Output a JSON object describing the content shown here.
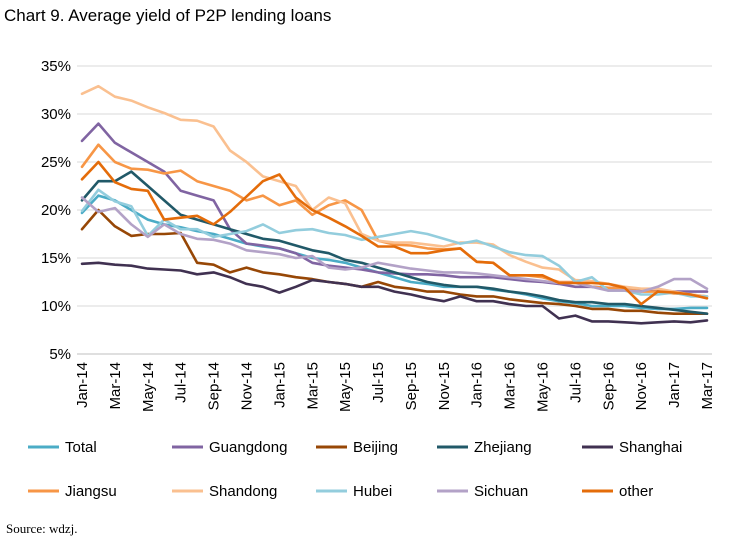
{
  "title": "Chart 9. Average yield of P2P lending loans",
  "source": "Source: wdzj.",
  "chart_data": {
    "type": "line",
    "x": [
      "Jan-14",
      "Feb-14",
      "Mar-14",
      "Apr-14",
      "May-14",
      "Jun-14",
      "Jul-14",
      "Aug-14",
      "Sep-14",
      "Oct-14",
      "Nov-14",
      "Dec-14",
      "Jan-15",
      "Feb-15",
      "Mar-15",
      "Apr-15",
      "May-15",
      "Jun-15",
      "Jul-15",
      "Aug-15",
      "Sep-15",
      "Oct-15",
      "Nov-15",
      "Dec-15",
      "Jan-16",
      "Feb-16",
      "Mar-16",
      "Apr-16",
      "May-16",
      "Jun-16",
      "Jul-16",
      "Aug-16",
      "Sep-16",
      "Oct-16",
      "Nov-16",
      "Dec-16",
      "Jan-17",
      "Feb-17",
      "Mar-17"
    ],
    "x_tick_labels": [
      "Jan-14",
      "Mar-14",
      "May-14",
      "Jul-14",
      "Sep-14",
      "Nov-14",
      "Jan-15",
      "Mar-15",
      "May-15",
      "Jul-15",
      "Sep-15",
      "Nov-15",
      "Jan-16",
      "Mar-16",
      "May-16",
      "Jul-16",
      "Sep-16",
      "Nov-16",
      "Jan-17",
      "Mar-17"
    ],
    "y_ticks": [
      "5%",
      "10%",
      "15%",
      "20%",
      "25%",
      "30%",
      "35%"
    ],
    "ylim": [
      5,
      35
    ],
    "grid": "horizontal",
    "legend_position": "bottom",
    "series": [
      {
        "name": "Total",
        "color": "#4bacc6",
        "values": [
          19.7,
          21.5,
          21.0,
          20.0,
          19.0,
          18.5,
          18.2,
          17.8,
          17.5,
          17.0,
          16.5,
          16.2,
          16.0,
          15.5,
          15.0,
          14.8,
          14.5,
          14.0,
          13.5,
          13.0,
          12.5,
          12.3,
          12.0,
          12.0,
          12.0,
          11.7,
          11.5,
          11.2,
          10.8,
          10.5,
          10.3,
          10.0,
          10.0,
          10.0,
          9.8,
          9.7,
          9.7,
          9.8,
          9.8
        ]
      },
      {
        "name": "Guangdong",
        "color": "#8064a2",
        "values": [
          27.2,
          29.0,
          27.0,
          26.0,
          25.0,
          24.0,
          22.0,
          21.5,
          21.0,
          18.0,
          16.5,
          16.3,
          16.0,
          15.5,
          14.5,
          14.2,
          14.0,
          13.8,
          13.5,
          13.4,
          13.3,
          13.3,
          13.2,
          13.0,
          13.0,
          13.0,
          12.8,
          12.6,
          12.5,
          12.3,
          12.0,
          12.0,
          11.9,
          11.8,
          11.7,
          11.6,
          11.5,
          11.5,
          11.5
        ]
      },
      {
        "name": "Beijing",
        "color": "#974706",
        "values": [
          18.0,
          20.0,
          18.3,
          17.3,
          17.5,
          17.5,
          17.6,
          14.5,
          14.3,
          13.5,
          14.0,
          13.5,
          13.3,
          13.0,
          12.8,
          12.5,
          12.3,
          12.0,
          12.5,
          12.0,
          11.8,
          11.5,
          11.5,
          11.2,
          11.0,
          11.0,
          10.7,
          10.5,
          10.3,
          10.2,
          10.0,
          9.7,
          9.7,
          9.5,
          9.5,
          9.3,
          9.2,
          9.2,
          9.2
        ]
      },
      {
        "name": "Zhejiang",
        "color": "#215968",
        "values": [
          21.0,
          23.0,
          23.0,
          24.0,
          22.5,
          21.0,
          19.5,
          19.0,
          18.5,
          18.0,
          17.5,
          17.0,
          16.8,
          16.3,
          15.8,
          15.5,
          14.8,
          14.5,
          14.0,
          13.5,
          13.0,
          12.5,
          12.2,
          12.0,
          12.0,
          11.8,
          11.5,
          11.3,
          11.0,
          10.6,
          10.4,
          10.4,
          10.2,
          10.2,
          10.0,
          9.8,
          9.6,
          9.4,
          9.2
        ]
      },
      {
        "name": "Shanghai",
        "color": "#403151",
        "values": [
          14.4,
          14.5,
          14.3,
          14.2,
          13.9,
          13.8,
          13.7,
          13.3,
          13.5,
          13.0,
          12.3,
          12.0,
          11.4,
          12.0,
          12.7,
          12.5,
          12.3,
          12.0,
          12.0,
          11.5,
          11.2,
          10.8,
          10.5,
          11.0,
          10.5,
          10.5,
          10.2,
          10.0,
          10.0,
          8.7,
          9.0,
          8.4,
          8.4,
          8.3,
          8.2,
          8.3,
          8.4,
          8.3,
          8.5
        ]
      },
      {
        "name": "Jiangsu",
        "color": "#f79646",
        "values": [
          24.5,
          26.8,
          25.0,
          24.3,
          24.2,
          23.8,
          24.1,
          23.0,
          22.5,
          22.0,
          21.0,
          21.5,
          20.5,
          21.0,
          19.5,
          20.5,
          21.0,
          20.0,
          16.8,
          16.4,
          16.3,
          16.0,
          15.9,
          16.0,
          14.6,
          14.5,
          13.2,
          13.2,
          13.0,
          12.5,
          12.5,
          12.0,
          11.9,
          11.8,
          11.5,
          11.5,
          11.3,
          11.2,
          11.0
        ]
      },
      {
        "name": "Shandong",
        "color": "#fac090",
        "values": [
          32.1,
          32.9,
          31.8,
          31.4,
          30.7,
          30.1,
          29.4,
          29.3,
          28.7,
          26.2,
          25.0,
          23.5,
          23.0,
          22.5,
          20.0,
          21.3,
          20.7,
          17.5,
          16.8,
          16.6,
          16.6,
          16.4,
          16.2,
          16.6,
          16.6,
          16.4,
          15.3,
          14.6,
          14.0,
          13.8,
          12.7,
          12.6,
          12.3,
          12.0,
          11.8,
          11.8,
          11.5,
          11.2,
          11.0
        ]
      },
      {
        "name": "Hubei",
        "color": "#93cddd",
        "values": [
          19.9,
          22.1,
          20.9,
          20.4,
          17.3,
          19.0,
          18.0,
          18.0,
          17.2,
          17.5,
          17.8,
          18.5,
          17.6,
          17.9,
          18.0,
          17.6,
          17.4,
          16.9,
          17.2,
          17.5,
          17.8,
          17.5,
          17.0,
          16.5,
          16.8,
          16.2,
          15.6,
          15.3,
          15.2,
          14.2,
          12.5,
          13.0,
          11.6,
          11.6,
          11.2,
          11.2,
          11.4,
          11.0,
          11.0
        ]
      },
      {
        "name": "Sichuan",
        "color": "#b3a2c7",
        "values": [
          21.3,
          19.8,
          20.2,
          18.5,
          17.2,
          18.5,
          17.5,
          17.0,
          16.9,
          16.5,
          15.8,
          15.6,
          15.4,
          15.0,
          15.2,
          14.0,
          13.8,
          14.0,
          14.5,
          14.2,
          13.9,
          13.7,
          13.5,
          13.5,
          13.4,
          13.2,
          13.0,
          12.8,
          12.6,
          12.4,
          12.4,
          12.0,
          11.6,
          11.6,
          11.5,
          12.0,
          12.8,
          12.8,
          11.8
        ]
      },
      {
        "name": "other",
        "color": "#e46c0a",
        "values": [
          23.2,
          25.0,
          22.9,
          22.2,
          22.0,
          19.0,
          19.2,
          19.4,
          18.5,
          19.8,
          21.4,
          23.0,
          23.7,
          21.3,
          20.0,
          19.2,
          18.3,
          17.3,
          16.2,
          16.2,
          15.5,
          15.5,
          15.8,
          16.0,
          14.6,
          14.5,
          13.2,
          13.2,
          13.2,
          12.4,
          12.4,
          12.4,
          12.3,
          11.9,
          10.2,
          11.5,
          11.4,
          11.2,
          10.8
        ]
      }
    ]
  }
}
